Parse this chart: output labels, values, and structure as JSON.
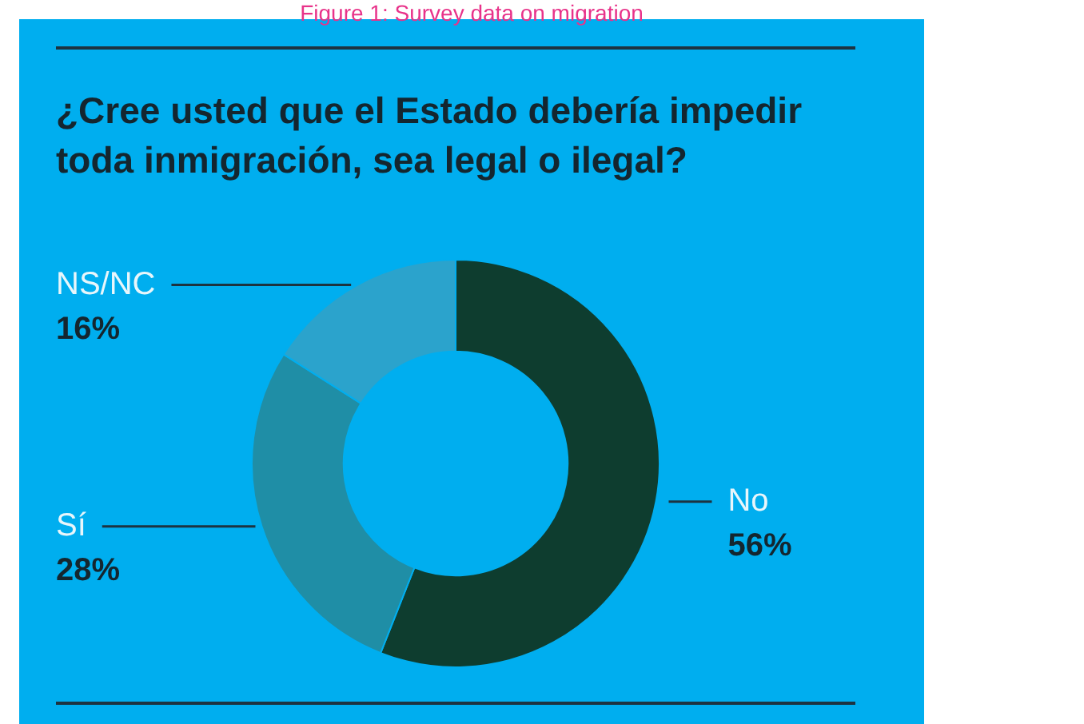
{
  "chart_data": {
    "type": "donut",
    "title": "¿Cree usted que el Estado debería impedir toda inmigración, sea legal o ilegal?",
    "annotations": [
      "Figure 1: Survey data on migration"
    ],
    "categories": [
      "No",
      "Sí",
      "NS/NC"
    ],
    "values": [
      56,
      28,
      16
    ],
    "colors": [
      "#0e3d2f",
      "#1f8ea6",
      "#2ba3cc"
    ],
    "value_labels": [
      "56%",
      "28%",
      "16%"
    ],
    "legend": false
  }
}
